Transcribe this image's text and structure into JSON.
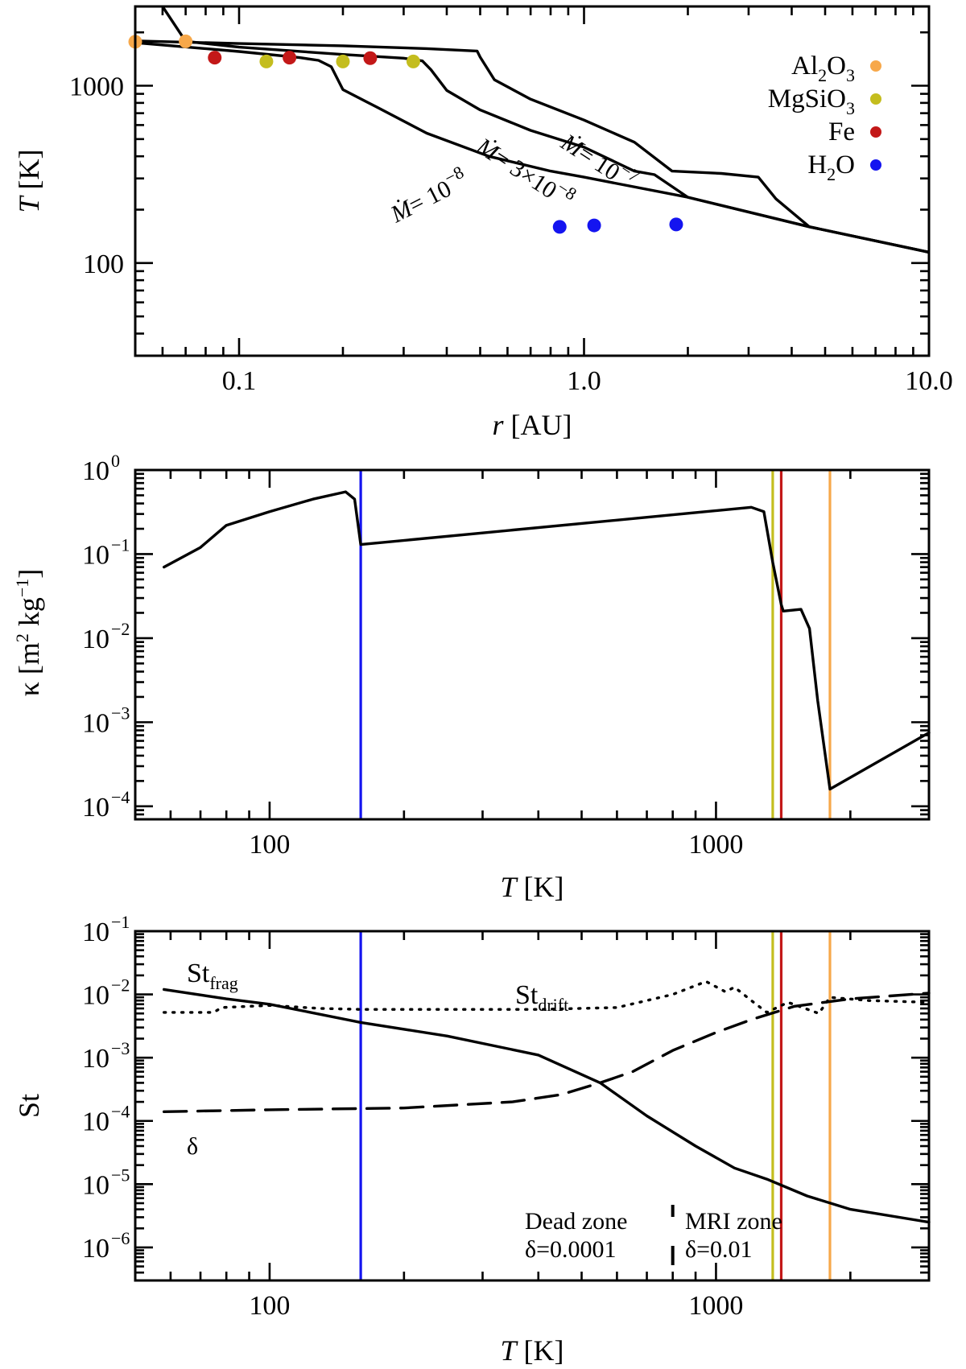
{
  "colors": {
    "Al2O3": "#f7a84a",
    "MgSiO3": "#c4bd1e",
    "Fe": "#c31818",
    "H2O": "#1414f0",
    "delta_line": "#c41010"
  },
  "chart_data": [
    {
      "type": "line",
      "panel": "top",
      "xlabel_italic": "r",
      "xlabel_unit": " [AU]",
      "ylabel_italic": "T",
      "ylabel_unit": " [K]",
      "xscale": "log",
      "yscale": "log",
      "xlim": [
        0.05,
        10
      ],
      "ylim": [
        30,
        2800
      ],
      "xticks": [
        {
          "v": 0.1,
          "label": "0.1"
        },
        {
          "v": 1,
          "label": "1.0"
        },
        {
          "v": 10,
          "label": "10.0"
        }
      ],
      "yticks": [
        {
          "v": 100,
          "label": "100"
        },
        {
          "v": 1000,
          "label": "1000"
        }
      ],
      "legend_position": "top-right",
      "legend": [
        {
          "key": "Al2O3",
          "base": "Al",
          "s1": "2",
          "mid": "O",
          "s2": "3"
        },
        {
          "key": "MgSiO3",
          "base": "MgSiO",
          "s1": "3",
          "mid": "",
          "s2": ""
        },
        {
          "key": "Fe",
          "base": "Fe",
          "s1": "",
          "mid": "",
          "s2": ""
        },
        {
          "key": "H2O",
          "base": "H",
          "s1": "2",
          "mid": "O",
          "s2": ""
        }
      ],
      "series": [
        {
          "name": "Mdot = 1e-8",
          "label": {
            "pre": "= 10",
            "exp": "−8"
          },
          "points": [
            [
              0.05,
              1750
            ],
            [
              0.1,
              1560
            ],
            [
              0.15,
              1440
            ],
            [
              0.17,
              1390
            ],
            [
              0.185,
              1280
            ],
            [
              0.2,
              950
            ],
            [
              0.25,
              760
            ],
            [
              0.35,
              540
            ],
            [
              0.53,
              400
            ],
            [
              0.8,
              330
            ],
            [
              1.0,
              305
            ],
            [
              2.0,
              235
            ],
            [
              4.5,
              160
            ],
            [
              10,
              115
            ]
          ]
        },
        {
          "name": "Mdot = 3e-8",
          "label": {
            "pre": "= 3×10",
            "exp": "−8"
          },
          "points": [
            [
              0.06,
              2800
            ],
            [
              0.07,
              1780
            ],
            [
              0.1,
              1650
            ],
            [
              0.2,
              1500
            ],
            [
              0.3,
              1430
            ],
            [
              0.34,
              1380
            ],
            [
              0.36,
              1230
            ],
            [
              0.4,
              940
            ],
            [
              0.5,
              730
            ],
            [
              0.7,
              560
            ],
            [
              1.0,
              450
            ],
            [
              1.4,
              330
            ],
            [
              1.6,
              315
            ],
            [
              2.0,
              235
            ],
            [
              4.5,
              160
            ],
            [
              10,
              115
            ]
          ]
        },
        {
          "name": "Mdot = 1e-7",
          "label": {
            "pre": "= 10",
            "exp": "−7"
          },
          "points": [
            [
              0.05,
              1790
            ],
            [
              0.1,
              1730
            ],
            [
              0.2,
              1680
            ],
            [
              0.35,
              1620
            ],
            [
              0.49,
              1570
            ],
            [
              0.5,
              1450
            ],
            [
              0.55,
              1080
            ],
            [
              0.7,
              840
            ],
            [
              1.0,
              640
            ],
            [
              1.4,
              480
            ],
            [
              1.8,
              330
            ],
            [
              2.5,
              320
            ],
            [
              3.2,
              305
            ],
            [
              3.6,
              230
            ],
            [
              4.5,
              160
            ],
            [
              10,
              115
            ]
          ]
        }
      ],
      "markers": [
        {
          "species": "Al2O3",
          "r": 0.05,
          "T": 1770
        },
        {
          "species": "Al2O3",
          "r": 0.07,
          "T": 1780
        },
        {
          "species": "Fe",
          "r": 0.085,
          "T": 1440
        },
        {
          "species": "MgSiO3",
          "r": 0.12,
          "T": 1370
        },
        {
          "species": "Fe",
          "r": 0.14,
          "T": 1440
        },
        {
          "species": "MgSiO3",
          "r": 0.2,
          "T": 1370
        },
        {
          "species": "Fe",
          "r": 0.24,
          "T": 1430
        },
        {
          "species": "MgSiO3",
          "r": 0.32,
          "T": 1370
        },
        {
          "species": "H2O",
          "r": 0.85,
          "T": 160
        },
        {
          "species": "H2O",
          "r": 1.07,
          "T": 163
        },
        {
          "species": "H2O",
          "r": 1.85,
          "T": 165
        }
      ]
    },
    {
      "type": "line",
      "panel": "middle",
      "xlabel_italic": "T",
      "xlabel_unit": " [K]",
      "ylabel_text": "κ [m",
      "ylabel_sup1": "2",
      "ylabel_mid": " kg",
      "ylabel_sup2": "−1",
      "ylabel_end": "]",
      "xscale": "log",
      "yscale": "log",
      "xlim": [
        50,
        3000
      ],
      "ylim": [
        7e-05,
        1
      ],
      "xticks": [
        {
          "v": 100,
          "label": "100"
        },
        {
          "v": 1000,
          "label": "1000"
        }
      ],
      "yticks": [
        {
          "v": 1,
          "base": "10",
          "exp": "0"
        },
        {
          "v": 0.1,
          "base": "10",
          "exp": "−1"
        },
        {
          "v": 0.01,
          "base": "10",
          "exp": "−2"
        },
        {
          "v": 0.001,
          "base": "10",
          "exp": "−3"
        },
        {
          "v": 0.0001,
          "base": "10",
          "exp": "−4"
        }
      ],
      "series": [
        {
          "name": "opacity",
          "points": [
            [
              58,
              0.07
            ],
            [
              70,
              0.12
            ],
            [
              80,
              0.22
            ],
            [
              100,
              0.32
            ],
            [
              125,
              0.45
            ],
            [
              148,
              0.55
            ],
            [
              155,
              0.45
            ],
            [
              160,
              0.13
            ],
            [
              1200,
              0.36
            ],
            [
              1280,
              0.32
            ],
            [
              1340,
              0.08
            ],
            [
              1400,
              0.025
            ],
            [
              1415,
              0.021
            ],
            [
              1550,
              0.022
            ],
            [
              1620,
              0.013
            ],
            [
              1690,
              0.0018
            ],
            [
              1800,
              0.00016
            ],
            [
              3000,
              0.00075
            ]
          ]
        }
      ],
      "vlines": [
        {
          "species": "H2O",
          "T": 160
        },
        {
          "species": "MgSiO3",
          "T": 1340
        },
        {
          "species": "Fe",
          "T": 1400
        },
        {
          "species": "Al2O3",
          "T": 1800
        }
      ]
    },
    {
      "type": "line",
      "panel": "bottom",
      "xlabel_italic": "T",
      "xlabel_unit": " [K]",
      "ylabel_text": "St",
      "xscale": "log",
      "yscale": "log",
      "xlim": [
        50,
        3000
      ],
      "ylim": [
        3e-07,
        0.1
      ],
      "xticks": [
        {
          "v": 100,
          "label": "100"
        },
        {
          "v": 1000,
          "label": "1000"
        }
      ],
      "yticks": [
        {
          "v": 0.1,
          "base": "10",
          "exp": "−1"
        },
        {
          "v": 0.01,
          "base": "10",
          "exp": "−2"
        },
        {
          "v": 0.001,
          "base": "10",
          "exp": "−3"
        },
        {
          "v": 0.0001,
          "base": "10",
          "exp": "−4"
        },
        {
          "v": 1e-05,
          "base": "10",
          "exp": "−5"
        },
        {
          "v": 1e-06,
          "base": "10",
          "exp": "−6"
        }
      ],
      "series": [
        {
          "name": "St_frag",
          "style": "solid",
          "label": {
            "base": "St",
            "sub": "frag"
          },
          "points": [
            [
              58,
              0.012
            ],
            [
              80,
              0.0085
            ],
            [
              100,
              0.007
            ],
            [
              160,
              0.0036
            ],
            [
              250,
              0.0022
            ],
            [
              400,
              0.0011
            ],
            [
              550,
              0.0004
            ],
            [
              700,
              0.00012
            ],
            [
              900,
              4e-05
            ],
            [
              1100,
              1.8e-05
            ],
            [
              1300,
              1.2e-05
            ],
            [
              1600,
              6.5e-06
            ],
            [
              2000,
              4e-06
            ],
            [
              3000,
              2.5e-06
            ]
          ]
        },
        {
          "name": "St_drift",
          "style": "dotted",
          "label": {
            "base": "St",
            "sub": "drift"
          },
          "points": [
            [
              58,
              0.0052
            ],
            [
              75,
              0.0052
            ],
            [
              78,
              0.0062
            ],
            [
              100,
              0.0067
            ],
            [
              130,
              0.006
            ],
            [
              160,
              0.0058
            ],
            [
              400,
              0.0058
            ],
            [
              600,
              0.0062
            ],
            [
              800,
              0.01
            ],
            [
              950,
              0.016
            ],
            [
              1050,
              0.011
            ],
            [
              1100,
              0.013
            ],
            [
              1200,
              0.008
            ],
            [
              1300,
              0.0052
            ],
            [
              1450,
              0.0075
            ],
            [
              1700,
              0.005
            ],
            [
              1800,
              0.009
            ],
            [
              2200,
              0.008
            ],
            [
              3000,
              0.0075
            ]
          ]
        },
        {
          "name": "delta",
          "style": "dashed",
          "label": {
            "base": "δ",
            "sub": ""
          },
          "points": [
            [
              58,
              0.00014
            ],
            [
              100,
              0.00015
            ],
            [
              200,
              0.00016
            ],
            [
              350,
              0.0002
            ],
            [
              450,
              0.00026
            ],
            [
              550,
              0.0004
            ],
            [
              650,
              0.0006
            ],
            [
              800,
              0.0013
            ],
            [
              1000,
              0.0025
            ],
            [
              1200,
              0.004
            ],
            [
              1500,
              0.0065
            ],
            [
              2000,
              0.0085
            ],
            [
              3000,
              0.0105
            ]
          ]
        }
      ],
      "vlines": [
        {
          "species": "H2O",
          "T": 160
        },
        {
          "species": "MgSiO3",
          "T": 1340
        },
        {
          "species": "Fe",
          "T": 1400
        },
        {
          "species": "Al2O3",
          "T": 1800
        }
      ],
      "zone_boundary_T": 800,
      "annotations": {
        "dead_zone": "Dead zone",
        "dead_delta": "δ=0.0001",
        "mri_zone": "MRI zone",
        "mri_delta": "δ=0.01"
      }
    }
  ]
}
